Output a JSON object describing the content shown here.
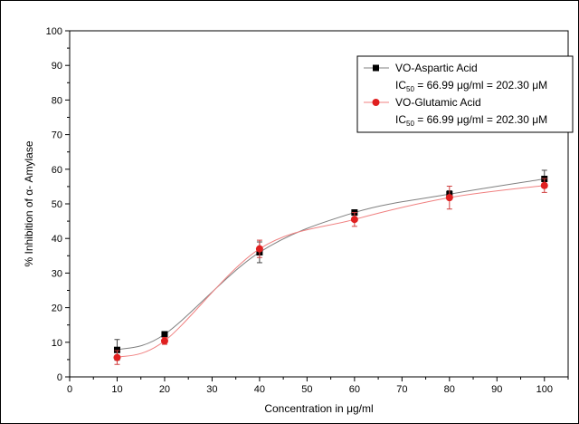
{
  "chart_data": {
    "type": "line",
    "title": "",
    "xlabel": "Concentration in μg/ml",
    "ylabel": "% Inhibition of α- Amylase",
    "xlim": [
      0,
      105
    ],
    "ylim": [
      0,
      100
    ],
    "x_ticks": [
      0,
      10,
      20,
      30,
      40,
      50,
      60,
      70,
      80,
      90,
      100
    ],
    "y_ticks": [
      0,
      10,
      20,
      30,
      40,
      50,
      60,
      70,
      80,
      90,
      100
    ],
    "grid": false,
    "legend_position": "top-right",
    "series": [
      {
        "name": "VO-Aspartic Acid",
        "ic50_text": "IC50 = 66.99 μg/ml = 202.30 μM",
        "marker": "square",
        "marker_color": "#000000",
        "line_color": "#808080",
        "x": [
          10,
          20,
          40,
          60,
          80,
          100
        ],
        "y": [
          7.8,
          12.3,
          36.0,
          47.5,
          52.8,
          57.2
        ],
        "err": [
          3.0,
          0.8,
          3.0,
          0.8,
          1.0,
          2.5
        ]
      },
      {
        "name": "VO-Glutamic Acid",
        "ic50_text": "IC50 = 66.99 μg/ml = 202.30 μM",
        "marker": "circle",
        "marker_color": "#e02020",
        "line_color": "#f08080",
        "x": [
          10,
          20,
          40,
          60,
          80,
          100
        ],
        "y": [
          5.6,
          10.4,
          37.0,
          45.5,
          51.8,
          55.3
        ],
        "err": [
          2.0,
          1.0,
          2.5,
          2.0,
          3.3,
          2.0
        ]
      }
    ]
  },
  "legend": {
    "entries": [
      {
        "label": "VO-Aspartic Acid",
        "ic50_prefix": "IC",
        "ic50_sub": "50",
        "ic50_rest": " = 66.99 μg/ml = 202.30 μM"
      },
      {
        "label": "VO-Glutamic Acid",
        "ic50_prefix": "IC",
        "ic50_sub": "50",
        "ic50_rest": " = 66.99 μg/ml = 202.30 μM"
      }
    ]
  }
}
